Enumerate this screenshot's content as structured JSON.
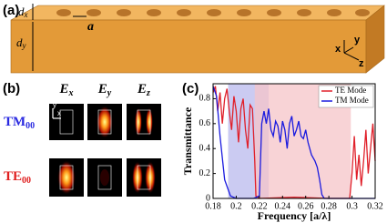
{
  "panel_a": {
    "label": "(a)",
    "dx": {
      "base": "d",
      "sub": "x"
    },
    "a": "a",
    "dy": {
      "base": "d",
      "sub": "y"
    },
    "axes": [
      "x",
      "y",
      "z"
    ]
  },
  "panel_b": {
    "label": "(b)",
    "columns": [
      {
        "base": "E",
        "sub": "x"
      },
      {
        "base": "E",
        "sub": "y"
      },
      {
        "base": "E",
        "sub": "z"
      }
    ],
    "rows": [
      {
        "base": "TM",
        "sub": "00"
      },
      {
        "base": "TE",
        "sub": "00"
      }
    ],
    "inset_axes": [
      "y",
      "x"
    ]
  },
  "chart_data": {
    "type": "line",
    "panel_label": "(c)",
    "x_label": "Frequency [a/λ]",
    "y_label": "Transmittance",
    "xlim": [
      0.18,
      0.32
    ],
    "xticks": [
      0.18,
      0.2,
      0.22,
      0.24,
      0.26,
      0.28,
      0.3,
      0.32
    ],
    "ylim": [
      0,
      0.92
    ],
    "yticks": [
      0,
      0.2,
      0.4,
      0.6,
      0.8
    ],
    "legend": "upper right",
    "bands": [
      {
        "range": [
          0.193,
          0.228
        ],
        "color": "#b9b9ee"
      },
      {
        "range": [
          0.216,
          0.299
        ],
        "color": "#f6c4c8"
      }
    ],
    "series": [
      {
        "name": "TE Mode",
        "color": "#e0202a",
        "x": [
          0.18,
          0.182,
          0.184,
          0.186,
          0.188,
          0.19,
          0.192,
          0.194,
          0.196,
          0.198,
          0.2,
          0.202,
          0.204,
          0.206,
          0.208,
          0.21,
          0.212,
          0.214,
          0.216,
          0.217,
          0.22,
          0.25,
          0.28,
          0.298,
          0.3,
          0.302,
          0.304,
          0.306,
          0.308,
          0.31,
          0.312,
          0.314,
          0.316,
          0.318,
          0.32
        ],
        "values": [
          0.85,
          0.9,
          0.7,
          0.85,
          0.6,
          0.8,
          0.88,
          0.7,
          0.55,
          0.82,
          0.7,
          0.45,
          0.72,
          0.8,
          0.55,
          0.4,
          0.75,
          0.72,
          0.3,
          0.02,
          0,
          0.01,
          0,
          0,
          0.2,
          0.5,
          0.15,
          0.35,
          0.1,
          0.3,
          0.55,
          0.2,
          0.4,
          0.6,
          0.3
        ]
      },
      {
        "name": "TM Mode",
        "color": "#1a1adf",
        "x": [
          0.18,
          0.183,
          0.186,
          0.19,
          0.195,
          0.2,
          0.215,
          0.22,
          0.222,
          0.224,
          0.226,
          0.228,
          0.23,
          0.232,
          0.234,
          0.236,
          0.238,
          0.24,
          0.242,
          0.244,
          0.246,
          0.248,
          0.25,
          0.252,
          0.254,
          0.256,
          0.258,
          0.26,
          0.262,
          0.265,
          0.268,
          0.27,
          0.272,
          0.274,
          0.276,
          0.3,
          0.32
        ],
        "values": [
          0.9,
          0.82,
          0.5,
          0.15,
          0.02,
          0,
          0,
          0.02,
          0.6,
          0.7,
          0.6,
          0.72,
          0.55,
          0.5,
          0.62,
          0.58,
          0.45,
          0.62,
          0.55,
          0.4,
          0.6,
          0.66,
          0.5,
          0.55,
          0.62,
          0.5,
          0.48,
          0.55,
          0.45,
          0.35,
          0.3,
          0.25,
          0.15,
          0.03,
          0,
          0,
          0
        ]
      }
    ]
  }
}
